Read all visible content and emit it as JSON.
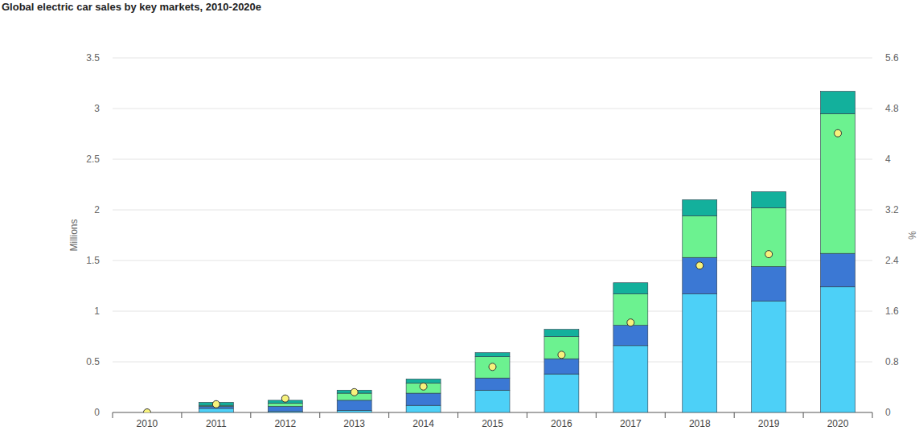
{
  "chart_data": {
    "type": "bar",
    "title": "Global electric car sales by key markets, 2010-2020e",
    "y_label": "Millions",
    "y2_label": "%",
    "stacked": true,
    "grid": true,
    "categories": [
      "2010",
      "2011",
      "2012",
      "2013",
      "2014",
      "2015",
      "2016",
      "2017",
      "2018",
      "2019",
      "2020"
    ],
    "ylim": [
      0,
      3.5
    ],
    "yticks": [
      0,
      0.5,
      1,
      1.5,
      2,
      2.5,
      3,
      3.5
    ],
    "y2lim": [
      0,
      5.6
    ],
    "y2ticks": [
      0,
      0.8,
      1.6,
      2.4,
      3.2,
      4,
      4.8,
      5.6
    ],
    "series": [
      {
        "color": "#4dd0f7",
        "values": [
          0,
          0.04,
          0.01,
          0.02,
          0.07,
          0.22,
          0.38,
          0.66,
          1.17,
          1.1,
          1.24
        ]
      },
      {
        "color": "#3b78d4",
        "values": [
          0,
          0.02,
          0.05,
          0.1,
          0.12,
          0.12,
          0.15,
          0.2,
          0.36,
          0.34,
          0.33
        ]
      },
      {
        "color": "#6cf290",
        "values": [
          0,
          0.01,
          0.03,
          0.07,
          0.1,
          0.21,
          0.22,
          0.31,
          0.41,
          0.58,
          1.38
        ]
      },
      {
        "color": "#13b09c",
        "values": [
          0,
          0.03,
          0.03,
          0.03,
          0.04,
          0.04,
          0.07,
          0.11,
          0.16,
          0.16,
          0.22
        ]
      },
      {
        "type": "scatter",
        "axis": "y2",
        "marker": "circle",
        "color": "#f7f27c",
        "values": [
          0,
          0.13,
          0.22,
          0.32,
          0.41,
          0.72,
          0.91,
          1.42,
          2.32,
          2.5,
          4.41
        ]
      }
    ]
  }
}
